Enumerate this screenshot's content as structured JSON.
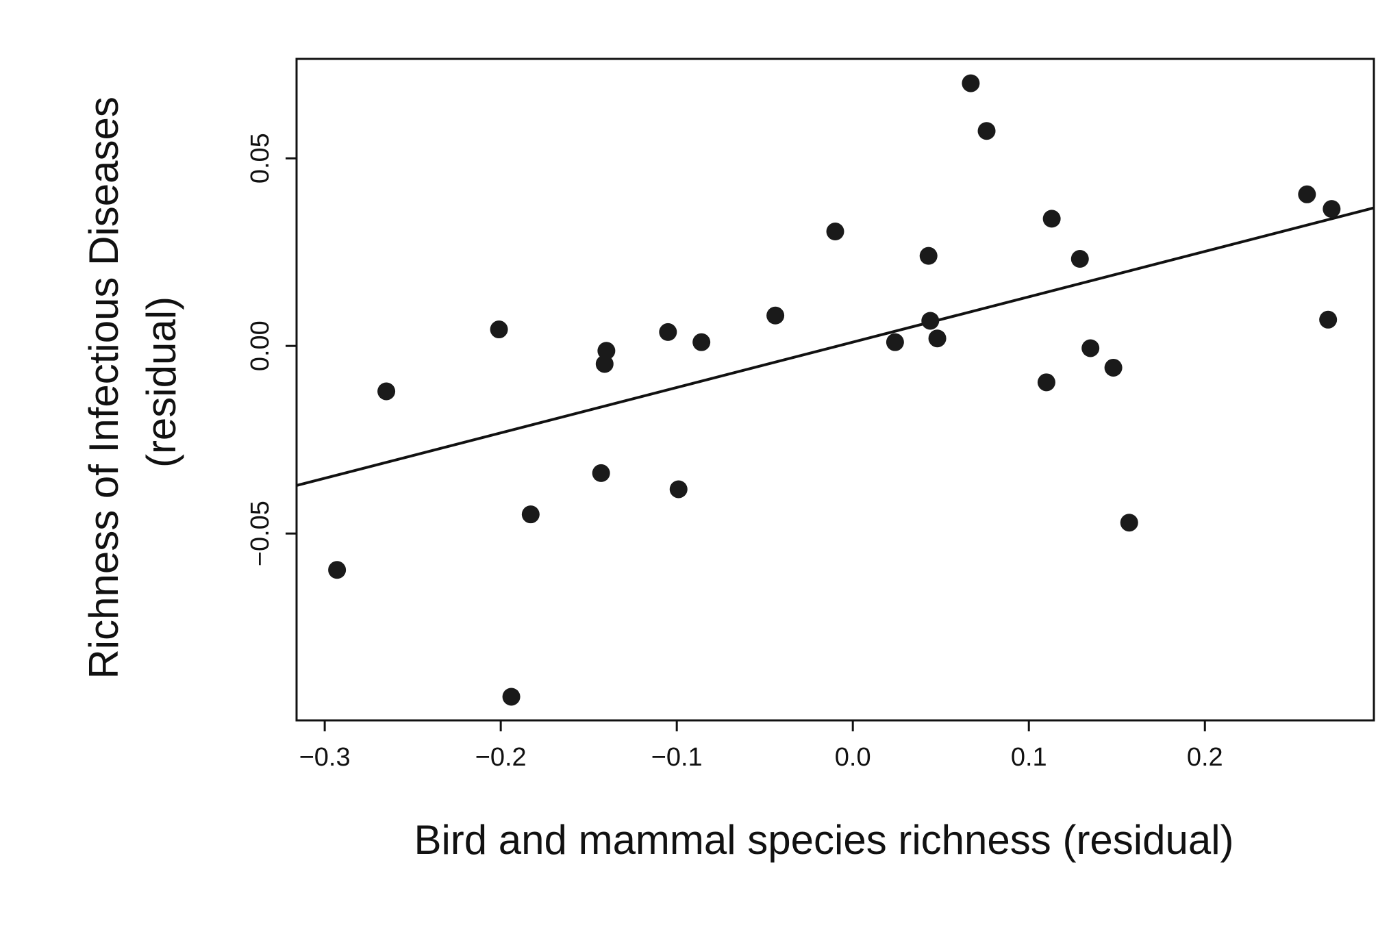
{
  "chart_data": {
    "type": "scatter",
    "title": "",
    "xlabel": "Bird and mammal species richness (residual)",
    "ylabel_lines": [
      "Richness of Infectious Diseases",
      "(residual)"
    ],
    "xlim": [
      -0.316,
      0.296
    ],
    "ylim": [
      -0.0998,
      0.0765
    ],
    "x_ticks": [
      {
        "value": -0.3,
        "label": "−0.3"
      },
      {
        "value": -0.2,
        "label": "−0.2"
      },
      {
        "value": -0.1,
        "label": "−0.1"
      },
      {
        "value": 0.0,
        "label": "0.0"
      },
      {
        "value": 0.1,
        "label": "0.1"
      },
      {
        "value": 0.2,
        "label": "0.2"
      }
    ],
    "y_ticks": [
      {
        "value": -0.05,
        "label": "−0.05"
      },
      {
        "value": 0.0,
        "label": "0.00"
      },
      {
        "value": 0.05,
        "label": "0.05"
      }
    ],
    "grid": false,
    "legend": "none",
    "point_color": "#1a1a1a",
    "line_color": "#111111",
    "points": [
      {
        "x": -0.293,
        "y": -0.0597
      },
      {
        "x": -0.265,
        "y": -0.0121
      },
      {
        "x": -0.201,
        "y": 0.0044
      },
      {
        "x": -0.194,
        "y": -0.0935
      },
      {
        "x": -0.183,
        "y": -0.0449
      },
      {
        "x": -0.143,
        "y": -0.0339
      },
      {
        "x": -0.141,
        "y": -0.0048
      },
      {
        "x": -0.14,
        "y": -0.0013
      },
      {
        "x": -0.105,
        "y": 0.0037
      },
      {
        "x": -0.099,
        "y": -0.0382
      },
      {
        "x": -0.086,
        "y": 0.001
      },
      {
        "x": -0.044,
        "y": 0.0081
      },
      {
        "x": -0.01,
        "y": 0.0305
      },
      {
        "x": 0.024,
        "y": 0.001
      },
      {
        "x": 0.043,
        "y": 0.024
      },
      {
        "x": 0.044,
        "y": 0.0067
      },
      {
        "x": 0.048,
        "y": 0.002
      },
      {
        "x": 0.067,
        "y": 0.07
      },
      {
        "x": 0.076,
        "y": 0.0573
      },
      {
        "x": 0.11,
        "y": -0.0097
      },
      {
        "x": 0.113,
        "y": 0.0339
      },
      {
        "x": 0.129,
        "y": 0.0232
      },
      {
        "x": 0.135,
        "y": -0.0006
      },
      {
        "x": 0.148,
        "y": -0.0058
      },
      {
        "x": 0.157,
        "y": -0.0471
      },
      {
        "x": 0.258,
        "y": 0.0404
      },
      {
        "x": 0.272,
        "y": 0.0365
      },
      {
        "x": 0.27,
        "y": 0.007
      }
    ],
    "regression_line": {
      "x": [
        -0.316,
        0.296
      ],
      "y": [
        -0.0372,
        0.0368
      ]
    }
  }
}
